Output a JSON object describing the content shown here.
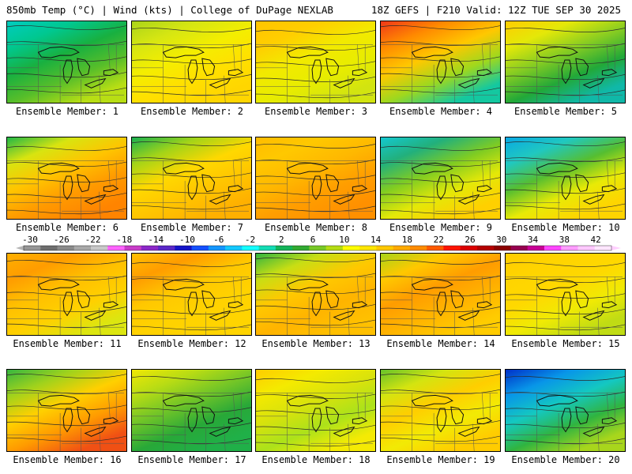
{
  "header": {
    "left": "850mb Temp (°C) | Wind (kts) | College of DuPage NEXLAB",
    "right": "18Z GEFS | F210 Valid: 12Z TUE SEP 30 2025"
  },
  "panels": [
    {
      "label": "Ensemble Member: 1",
      "bands": [
        "#00ccc0",
        "#00c890",
        "#18b040",
        "#58be2a",
        "#b8de14"
      ]
    },
    {
      "label": "Ensemble Member: 2",
      "bands": [
        "#aad41a",
        "#d6e612",
        "#f4ee00",
        "#ffe000",
        "#ffd600"
      ]
    },
    {
      "label": "Ensemble Member: 3",
      "bands": [
        "#ffc400",
        "#ffce00",
        "#f2ea00",
        "#e8ec00",
        "#d2e410"
      ]
    },
    {
      "label": "Ensemble Member: 4",
      "bands": [
        "#f03818",
        "#ff8a00",
        "#ffc800",
        "#9ed81e",
        "#14c8a0"
      ]
    },
    {
      "label": "Ensemble Member: 5",
      "bands": [
        "#ffcc00",
        "#e4e808",
        "#86cc22",
        "#22a838",
        "#10b8a8"
      ]
    },
    {
      "label": "Ensemble Member: 6",
      "bands": [
        "#20b848",
        "#d8e410",
        "#ffc400",
        "#ff9a00",
        "#ff8400"
      ]
    },
    {
      "label": "Ensemble Member: 7",
      "bands": [
        "#18b050",
        "#a4d418",
        "#ffd800",
        "#ffc400",
        "#ffb000"
      ]
    },
    {
      "label": "Ensemble Member: 8",
      "bands": [
        "#ffbc00",
        "#ffc800",
        "#ffb800",
        "#ff9e00",
        "#ff9000"
      ]
    },
    {
      "label": "Ensemble Member: 9",
      "bands": [
        "#14c8d0",
        "#22b07c",
        "#80cc22",
        "#e4e808",
        "#ffd000"
      ]
    },
    {
      "label": "Ensemble Member: 10",
      "bands": [
        "#08a8e4",
        "#20c8c0",
        "#56be30",
        "#e8ea06",
        "#ffd400"
      ]
    },
    {
      "label": "Ensemble Member: 11",
      "bands": [
        "#ffb000",
        "#ff9c00",
        "#ffc000",
        "#ffd000",
        "#dce610"
      ]
    },
    {
      "label": "Ensemble Member: 12",
      "bands": [
        "#ffc000",
        "#ff9c00",
        "#ffc800",
        "#ffd200",
        "#ffd400"
      ]
    },
    {
      "label": "Ensemble Member: 13",
      "bands": [
        "#30b440",
        "#c8de14",
        "#ffc800",
        "#ffb400",
        "#ffc000"
      ]
    },
    {
      "label": "Ensemble Member: 14",
      "bands": [
        "#a8d418",
        "#ffc800",
        "#ff9c00",
        "#ffb400",
        "#ffcc00"
      ]
    },
    {
      "label": "Ensemble Member: 15",
      "bands": [
        "#ffcc00",
        "#ffd400",
        "#ffd800",
        "#f0ea04",
        "#c0dc14"
      ]
    },
    {
      "label": "Ensemble Member: 16",
      "bands": [
        "#36b640",
        "#a0d21c",
        "#ffd000",
        "#ff9a00",
        "#f05014"
      ]
    },
    {
      "label": "Ensemble Member: 17",
      "bands": [
        "#f0e804",
        "#b8dc14",
        "#70c428",
        "#28a838",
        "#20b048"
      ]
    },
    {
      "label": "Ensemble Member: 18",
      "bands": [
        "#ffcc00",
        "#f4ea00",
        "#d8e20c",
        "#ace21a",
        "#f4ea04"
      ]
    },
    {
      "label": "Ensemble Member: 19",
      "bands": [
        "#66c22a",
        "#d4e410",
        "#ffce00",
        "#f2ea04",
        "#ffcc00"
      ]
    },
    {
      "label": "Ensemble Member: 20",
      "bands": [
        "#0030c8",
        "#0896e8",
        "#14c8c0",
        "#30b440",
        "#a8d61c"
      ]
    }
  ],
  "colorbar": {
    "labels": [
      "-30",
      "-26",
      "-22",
      "-18",
      "-14",
      "-10",
      "-6",
      "-2",
      "2",
      "6",
      "10",
      "14",
      "18",
      "22",
      "26",
      "30",
      "34",
      "38",
      "42"
    ],
    "colors": [
      "#969696",
      "#6e6e6e",
      "#8a8a8a",
      "#a8a8a8",
      "#c8c8c8",
      "#ff64ff",
      "#c83cc8",
      "#8c28c8",
      "#5a28c8",
      "#1414c8",
      "#1450ff",
      "#1496ff",
      "#14c8ff",
      "#14ffff",
      "#14dcb4",
      "#14b45a",
      "#32aa32",
      "#78c828",
      "#b4dc14",
      "#ffff00",
      "#ffe600",
      "#ffc800",
      "#ffaa00",
      "#ff8c00",
      "#ff5a00",
      "#ff1400",
      "#dc0000",
      "#b40000",
      "#8c0000",
      "#960050",
      "#c80096",
      "#ff46ff",
      "#ff9cff",
      "#ffc8ff",
      "#ffe6ff"
    ]
  }
}
